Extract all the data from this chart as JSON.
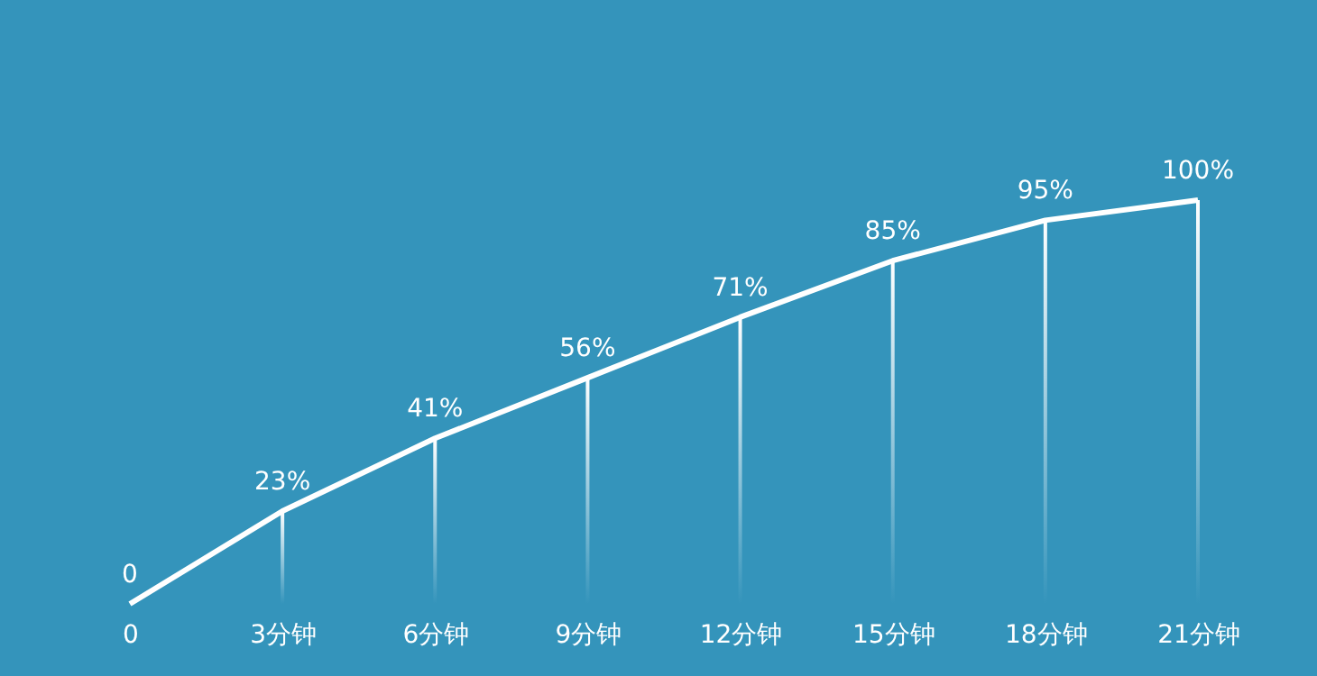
{
  "chart_data": {
    "type": "line",
    "categories": [
      "0",
      "3分钟",
      "6分钟",
      "9分钟",
      "12分钟",
      "15分钟",
      "18分钟",
      "21分钟"
    ],
    "series": [
      {
        "type": "bar",
        "color": "#ffffff",
        "values": [
          0,
          23,
          41,
          56,
          71,
          85,
          95,
          100
        ]
      },
      {
        "color": "#ffffff",
        "values": [
          0,
          23,
          41,
          56,
          71,
          85,
          95,
          100
        ],
        "value_labels": [
          "0",
          "23%",
          "41%",
          "56%",
          "71%",
          "85%",
          "95%",
          "100%"
        ]
      }
    ],
    "grid": false,
    "marker": "none",
    "line_style": "solid"
  }
}
